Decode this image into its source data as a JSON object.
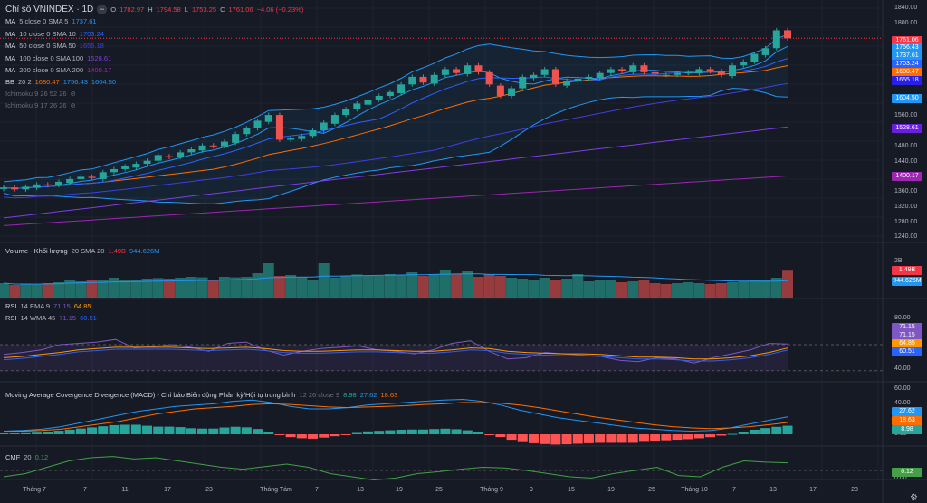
{
  "header": {
    "title": "Chỉ số VNINDEX · 1D",
    "o_label": "O",
    "o": "1782.97",
    "h_label": "H",
    "h": "1794.58",
    "l_label": "L",
    "l": "1753.25",
    "c_label": "C",
    "c": "1761.06",
    "change": "−4.06 (−0.23%)"
  },
  "legends": [
    {
      "name": "MA",
      "params": "5 close 0 SMA 5",
      "value": "1737.61",
      "color": "#2196f3"
    },
    {
      "name": "MA",
      "params": "10 close 0 SMA 10",
      "value": "1703.24",
      "color": "#2962ff"
    },
    {
      "name": "MA",
      "params": "50 close 0 SMA 50",
      "value": "1655.18",
      "color": "#3f3fe0"
    },
    {
      "name": "MA",
      "params": "100 close 0 SMA 100",
      "value": "1528.61",
      "color": "#7b3fe4"
    },
    {
      "name": "MA",
      "params": "200 close 0 SMA 200",
      "value": "1400.17",
      "color": "#9c27b0"
    }
  ],
  "bb": {
    "name": "BB",
    "params": "20 2",
    "basis": "1680.47",
    "upper": "1756.43",
    "lower": "1604.50"
  },
  "ichimoku": [
    "Ichimoku 9 26 52 26",
    "Ichimoku 9 17 26 26"
  ],
  "volume": {
    "name": "Volume - Khối lượng",
    "params": "20 SMA 20",
    "value": "1.49B",
    "sma": "944.626M",
    "axis": "2B"
  },
  "rsi1": {
    "name": "RSI",
    "params": "14 EMA 9",
    "rsi": "71.15",
    "ma": "64.85"
  },
  "rsi2": {
    "name": "RSI",
    "params": "14 WMA 45",
    "rsi": "71.15",
    "ma": "60.51"
  },
  "macd": {
    "name": "Moving Average Covergence Divergence (MACD) - Chỉ báo Biến động Phân kỳ/Hội tụ trung bình",
    "params": "12 26 close 9",
    "hist": "8.98",
    "macd": "27.62",
    "signal": "18.63"
  },
  "cmf": {
    "name": "CMF",
    "params": "20",
    "value": "0.12"
  },
  "price_axis": [
    "1840.00",
    "1800.00",
    "1560.00",
    "1480.00",
    "1440.00",
    "1360.00",
    "1320.00",
    "1280.00",
    "1240.00"
  ],
  "rsi_axis": [
    "80.00",
    "40.00"
  ],
  "macd_axis": [
    "60.00",
    "40.00",
    "0.00"
  ],
  "cmf_axis": [
    "0.00"
  ],
  "x_axis": [
    "Tháng 7",
    "7",
    "11",
    "17",
    "23",
    "Tháng Tám",
    "7",
    "13",
    "19",
    "25",
    "Tháng 9",
    "9",
    "15",
    "19",
    "25",
    "Tháng 10",
    "7",
    "13",
    "17",
    "23"
  ],
  "colors": {
    "up": "#26a69a",
    "down": "#ef5350",
    "bg": "#161a25"
  },
  "chart_data": {
    "type": "candlestick",
    "closes": [
      1370,
      1365,
      1372,
      1378,
      1376,
      1385,
      1392,
      1398,
      1395,
      1410,
      1418,
      1425,
      1432,
      1440,
      1455,
      1450,
      1462,
      1470,
      1480,
      1478,
      1490,
      1510,
      1525,
      1545,
      1560,
      1495,
      1500,
      1505,
      1520,
      1540,
      1560,
      1575,
      1590,
      1600,
      1610,
      1620,
      1640,
      1660,
      1645,
      1665,
      1680,
      1670,
      1690,
      1672,
      1640,
      1610,
      1630,
      1660,
      1665,
      1680,
      1640,
      1650,
      1655,
      1660,
      1670,
      1680,
      1675,
      1690,
      1672,
      1668,
      1665,
      1670,
      1672,
      1680,
      1675,
      1665,
      1690,
      1700,
      1720,
      1735,
      1782,
      1761
    ],
    "ma100": [
      1290,
      1528.61
    ],
    "ma200": [
      1270,
      1400.17
    ],
    "volume": [
      0.8,
      0.7,
      0.75,
      0.72,
      0.8,
      0.85,
      1.0,
      0.9,
      1.0,
      0.95,
      1.1,
      0.95,
      1.0,
      1.05,
      1.08,
      1.05,
      1.1,
      1.15,
      1.12,
      1.0,
      1.15,
      1.12,
      1.15,
      1.35,
      1.9,
      1.2,
      1.25,
      1.15,
      1.0,
      1.9,
      1.1,
      1.2,
      1.28,
      1.2,
      1.2,
      1.3,
      1.25,
      1.4,
      1.2,
      1.3,
      1.5,
      1.3,
      1.45,
      1.15,
      1.3,
      1.2,
      1.1,
      1.05,
      1.0,
      1.1,
      1.0,
      1.05,
      1.3,
      0.9,
      0.95,
      1.0,
      0.85,
      0.9,
      0.95,
      0.8,
      0.75,
      0.8,
      0.85,
      0.8,
      0.75,
      0.8,
      0.85,
      0.9,
      0.95,
      1.0,
      1.1,
      1.49
    ],
    "rsi": [
      55,
      58,
      62,
      70,
      72,
      74,
      78,
      65,
      67,
      70,
      66,
      60,
      72,
      74,
      62,
      54,
      60,
      64,
      66,
      68,
      62,
      60,
      56,
      62,
      72,
      76,
      60,
      48,
      50,
      58,
      56,
      54,
      52,
      46,
      44,
      50,
      48,
      42,
      50,
      56,
      62,
      72,
      71.15
    ],
    "rsi_ma": [
      50,
      52,
      55,
      58,
      62,
      64,
      66,
      66,
      66,
      66,
      65,
      64,
      65,
      66,
      64,
      61,
      60,
      60,
      61,
      62,
      62,
      61,
      60,
      60,
      62,
      65,
      64,
      60,
      58,
      57,
      56,
      56,
      55,
      53,
      51,
      51,
      50,
      48,
      48,
      50,
      53,
      58,
      64.85
    ],
    "macd": [
      5,
      6,
      8,
      12,
      18,
      24,
      30,
      36,
      40,
      44,
      46,
      48,
      52,
      54,
      50,
      44,
      40,
      40,
      42,
      46,
      48,
      50,
      52,
      54,
      55,
      52,
      46,
      38,
      32,
      26,
      22,
      18,
      14,
      10,
      8,
      6,
      5,
      6,
      10,
      16,
      22,
      27.62
    ],
    "signal": [
      4,
      5,
      6,
      8,
      12,
      16,
      20,
      26,
      32,
      36,
      40,
      42,
      44,
      47,
      48,
      47,
      45,
      43,
      42,
      43,
      44,
      45,
      47,
      48,
      50,
      50,
      49,
      46,
      42,
      37,
      32,
      27,
      23,
      19,
      15,
      12,
      10,
      9,
      10,
      12,
      15,
      18.63
    ],
    "cmf": [
      -0.1,
      -0.05,
      0.05,
      0.15,
      0.2,
      0.22,
      0.18,
      0.2,
      0.15,
      0.1,
      0.05,
      0.02,
      0.06,
      0.1,
      0.05,
      -0.05,
      -0.1,
      -0.15,
      -0.12,
      -0.05,
      -0.02,
      0.02,
      0.05,
      0.04,
      0.0,
      -0.05,
      -0.1,
      -0.12,
      -0.05,
      0.0,
      0.05,
      -0.08,
      -0.1,
      0.05,
      0.15,
      0.13,
      0.12
    ]
  }
}
